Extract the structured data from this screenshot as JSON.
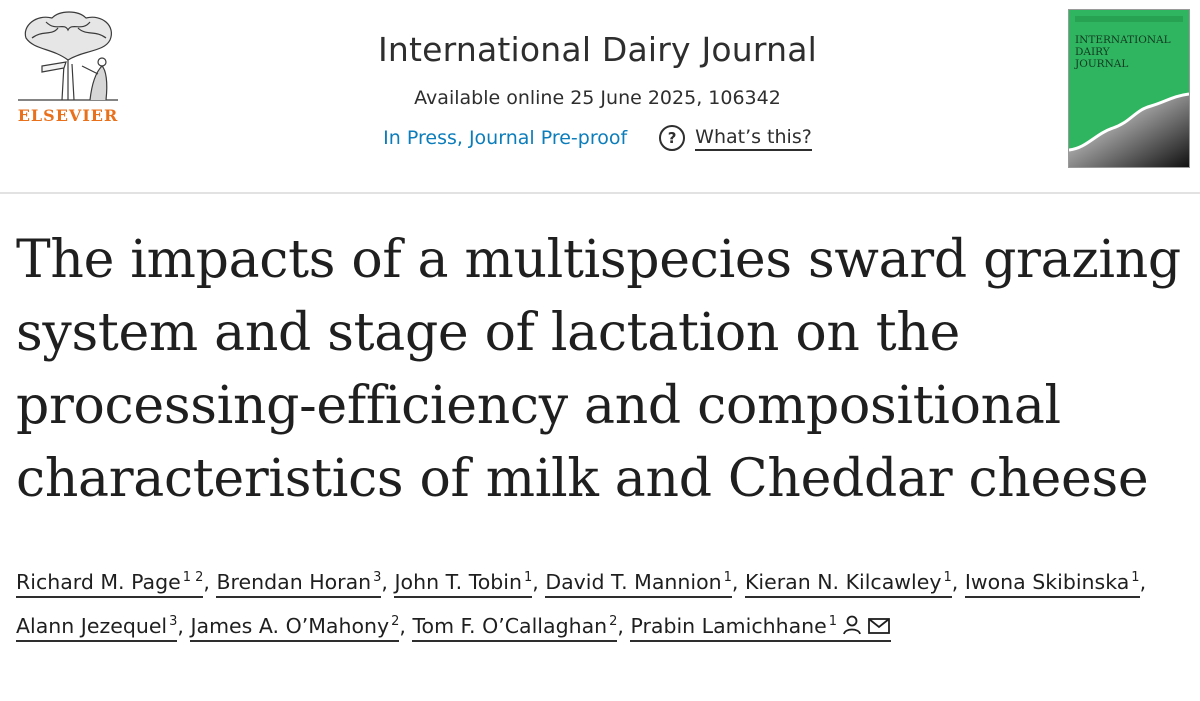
{
  "header": {
    "publisher": "ELSEVIER",
    "journal_title": "International Dairy Journal",
    "availability": "Available online 25 June 2025, 106342",
    "status_link": "In Press, Journal Pre-proof",
    "help_link": "What’s this?",
    "help_icon": "?",
    "cover": {
      "title_line1": "INTERNATIONAL",
      "title_line2": "DAIRY",
      "title_line3": "JOURNAL",
      "colors": {
        "green": "#2fb45f",
        "dark": "#111111"
      }
    }
  },
  "article": {
    "title": "The impacts of a multispecies sward grazing system and stage of lactation on the processing-efficiency and compositional characteristics of milk and Cheddar cheese",
    "authors": [
      {
        "name": "Richard M. Page",
        "affil": "1 2"
      },
      {
        "name": "Brendan Horan",
        "affil": "3"
      },
      {
        "name": "John T. Tobin",
        "affil": "1"
      },
      {
        "name": "David T. Mannion",
        "affil": "1"
      },
      {
        "name": "Kieran N. Kilcawley",
        "affil": "1"
      },
      {
        "name": "Iwona Skibinska",
        "affil": "1"
      },
      {
        "name": "Alann Jezequel",
        "affil": "3"
      },
      {
        "name": "James A. O’Mahony",
        "affil": "2"
      },
      {
        "name": "Tom F. O’Callaghan",
        "affil": "2"
      },
      {
        "name": "Prabin Lamichhane",
        "affil": "1",
        "icons": [
          "person-icon",
          "envelope-icon"
        ]
      }
    ],
    "separator": ","
  },
  "colors": {
    "link": "#0c7dbb",
    "brand": "#e9711c",
    "text": "#1f1f1f"
  }
}
